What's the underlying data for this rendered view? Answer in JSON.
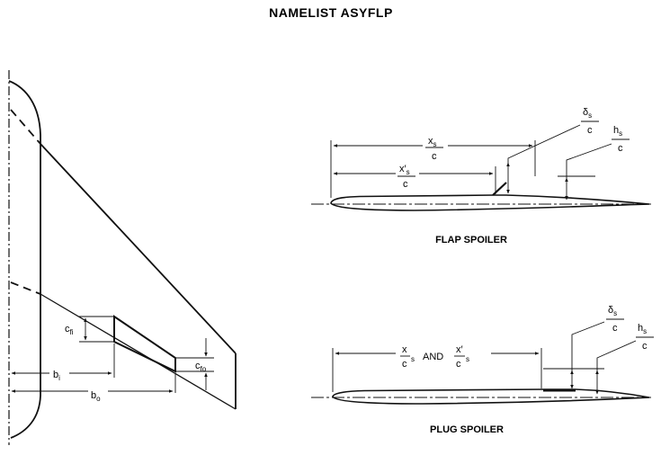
{
  "title": "NAMELIST ASYFLP",
  "wing": {
    "cfi": {
      "main": "c",
      "sub": "fi"
    },
    "cfo": {
      "main": "c",
      "sub": "fo"
    },
    "bi": {
      "main": "b",
      "sub": "i"
    },
    "bo": {
      "main": "b",
      "sub": "o"
    }
  },
  "flap_spoiler": {
    "caption": "FLAP SPOILER",
    "xs_num": {
      "main": "x",
      "sub": "s"
    },
    "xs_den": "c",
    "xps_num": {
      "main": "x′",
      "sub": "s"
    },
    "xps_den": "c",
    "ds_num": {
      "main": "δ",
      "sub": "s"
    },
    "ds_den": "c",
    "hs_num": {
      "main": "h",
      "sub": "s"
    },
    "hs_den": "c"
  },
  "plug_spoiler": {
    "caption": "PLUG SPOILER",
    "xs_num": "x",
    "xs_den": "c",
    "xs_sub": "s",
    "and": "AND",
    "xps_num": "x′",
    "xps_den": "c",
    "xps_sub": "s",
    "ds_num": {
      "main": "δ",
      "sub": "s"
    },
    "ds_den": "c",
    "hs_num": {
      "main": "h",
      "sub": "s"
    },
    "hs_den": "c"
  }
}
